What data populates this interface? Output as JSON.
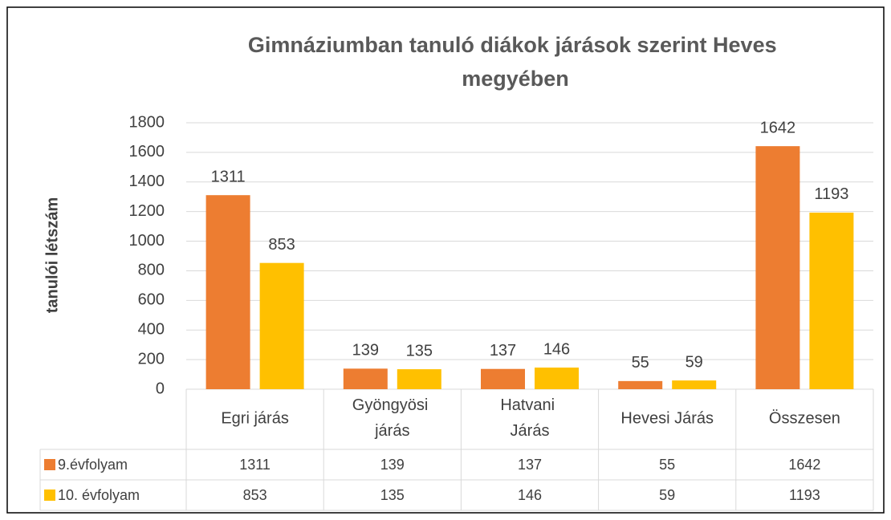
{
  "chart_data": {
    "type": "bar",
    "title": "Gimnáziumban tanuló diákok járások szerint Heves megyében",
    "y_label": "tanulói létszám",
    "categories": [
      "Egri járás",
      "Gyöngyösi járás",
      "Hatvani Járás",
      "Hevesi Járás",
      "Összesen"
    ],
    "series": [
      {
        "name": "9.évfolyam",
        "color": "#ed7d31",
        "values": [
          1311,
          139,
          137,
          55,
          1642
        ]
      },
      {
        "name": "10. évfolyam",
        "color": "#ffc000",
        "values": [
          853,
          135,
          146,
          59,
          1193
        ]
      }
    ],
    "ylim": [
      0,
      1800
    ],
    "yticks": [
      0,
      200,
      400,
      600,
      800,
      1000,
      1200,
      1400,
      1600,
      1800
    ],
    "grid": true,
    "data_table": true
  }
}
